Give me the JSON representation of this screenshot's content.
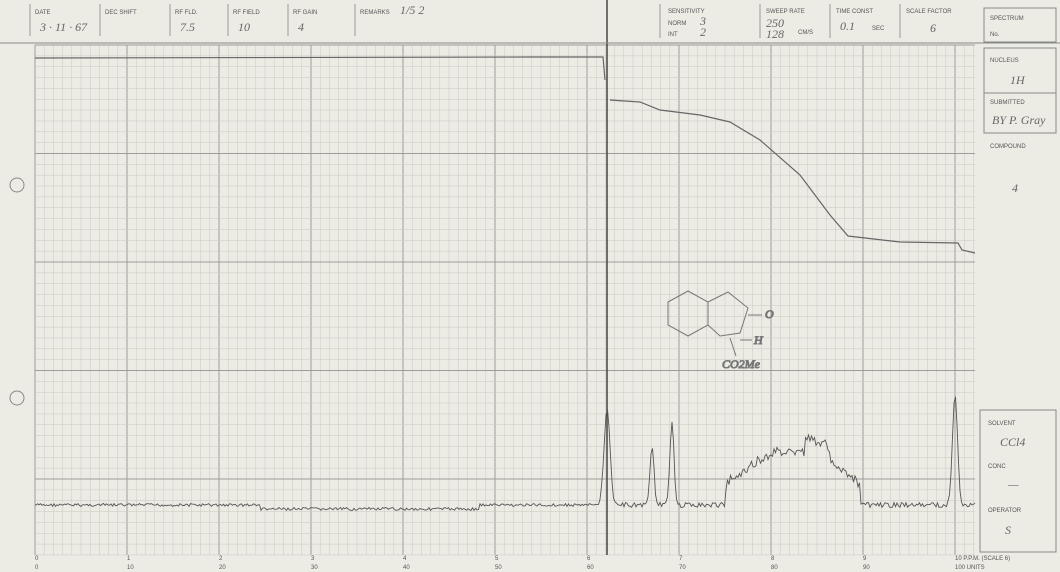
{
  "header": {
    "fields": [
      {
        "label": "DATE",
        "value": "3 · 11 · 67"
      },
      {
        "label": "DEC SHIFT",
        "value": ""
      },
      {
        "label": "RF FLD.",
        "value": "7.5"
      },
      {
        "label": "RF FIELD",
        "value": "10"
      },
      {
        "label": "RF GAIN",
        "value": "4"
      },
      {
        "label": "REMARKS",
        "value": "1/5 2"
      }
    ],
    "sensitivity": {
      "label": "SENSITIVITY",
      "norm": "NORM",
      "norm_value": "3",
      "int": "INT",
      "int_value": "2"
    },
    "sweep": {
      "label": "SWEEP RATE",
      "value": "250",
      "sub": "128",
      "unit": "CM/S"
    },
    "time_const": {
      "label": "TIME CONST",
      "value": "0.1",
      "unit": "SEC"
    },
    "scale_factor": {
      "label": "SCALE FACTOR",
      "value": "6"
    }
  },
  "side": {
    "spectrum": "SPECTRUM",
    "spectrum_no": "No.",
    "nucleus": "NUCLEUS",
    "nucleus_value": "1H",
    "submitted": "SUBMITTED",
    "submitted_value": "BY P. Gray",
    "compound": "COMPOUND",
    "compound_value": "4",
    "solvent": "SOLVENT",
    "solvent_value": "CCl4",
    "conc": "CONC",
    "conc_value": "—",
    "operator": "OPERATOR",
    "operator_value": "S"
  },
  "axis": {
    "ppm_ticks": [
      "0",
      "1",
      "2",
      "3",
      "4",
      "5",
      "6",
      "7",
      "8",
      "9",
      "10 P.P.M. (SCALE 6)"
    ],
    "unit_ticks": [
      "0",
      "10",
      "20",
      "30",
      "40",
      "50",
      "60",
      "70",
      "80",
      "90",
      "100 UNITS"
    ]
  },
  "structure": {
    "o": "O",
    "h": "H",
    "ester": "CO2Me"
  }
}
